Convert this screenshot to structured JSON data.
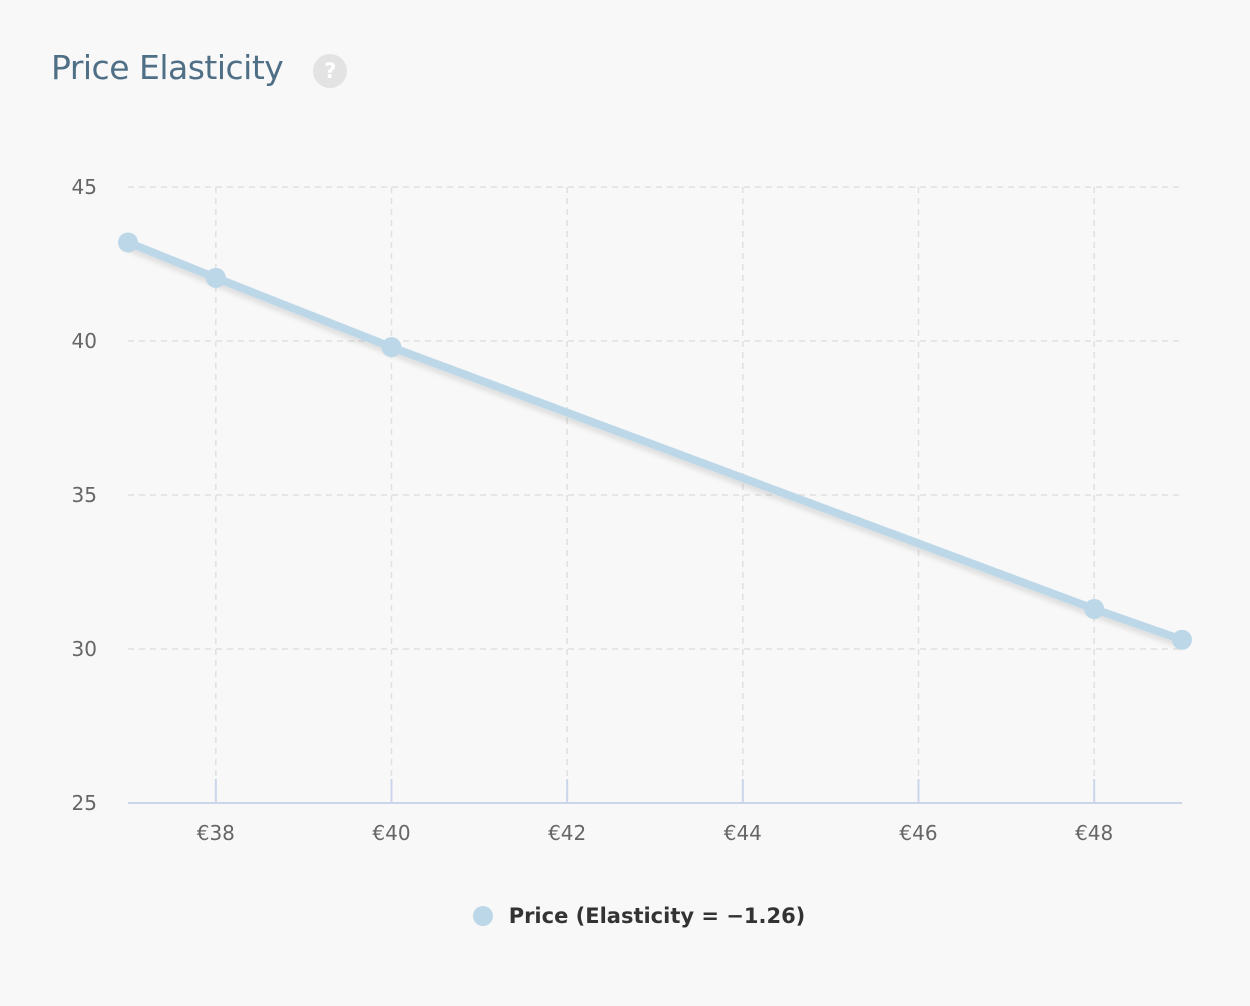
{
  "header": {
    "title": "Price Elasticity",
    "help_glyph": "?"
  },
  "colors": {
    "series": "#bcd7e8",
    "title": "#4f6f86",
    "grid": "#e0e0e0",
    "axis": "#ccd6eb"
  },
  "chart_data": {
    "type": "line",
    "title": "Price Elasticity",
    "xlabel": "",
    "ylabel": "",
    "xlim": [
      37,
      49
    ],
    "ylim": [
      25,
      45
    ],
    "x_ticks": [
      38,
      40,
      42,
      44,
      46,
      48
    ],
    "x_tick_labels": [
      "€38",
      "€40",
      "€42",
      "€44",
      "€46",
      "€48"
    ],
    "y_ticks": [
      25,
      30,
      35,
      40,
      45
    ],
    "y_tick_labels": [
      "25",
      "30",
      "35",
      "40",
      "45"
    ],
    "grid": true,
    "legend_position": "bottom-center",
    "series": [
      {
        "name": "Price (Elasticity = −1.26)",
        "color": "#bcd7e8",
        "x": [
          37,
          38,
          40,
          48,
          49
        ],
        "y": [
          43.2,
          42.05,
          39.8,
          31.3,
          30.3
        ]
      }
    ]
  }
}
